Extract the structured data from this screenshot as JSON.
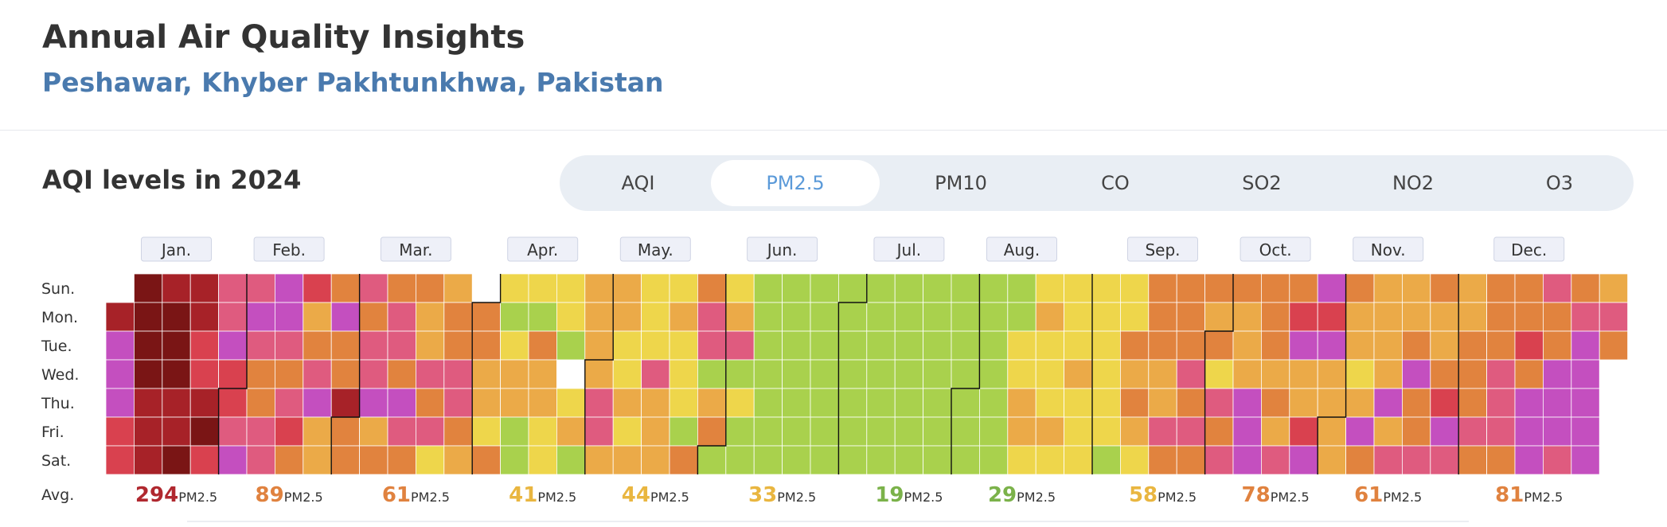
{
  "header": {
    "title": "Annual Air Quality Insights",
    "subtitle": "Peshawar, Khyber Pakhtunkhwa, Pakistan"
  },
  "section": {
    "title": "AQI levels in 2024"
  },
  "tabs": [
    {
      "label": "AQI",
      "active": false
    },
    {
      "label": "PM2.5",
      "active": true
    },
    {
      "label": "PM10",
      "active": false
    },
    {
      "label": "CO",
      "active": false
    },
    {
      "label": "SO2",
      "active": false
    },
    {
      "label": "NO2",
      "active": false
    },
    {
      "label": "O3",
      "active": false
    }
  ],
  "colors": {
    "dark_red": "#7a1515",
    "red": "#d9414f",
    "purple": "#9b3cb4",
    "pink": "#df5b7f",
    "orange": "#e1833e",
    "light_orange": "#ebaa48",
    "yellow": "#eed64b",
    "yellow_green": "#d0dc55",
    "green": "#a9d14d",
    "accent": "#5b9ad9",
    "subtitle": "#4a7aae"
  },
  "chart_data": {
    "type": "heatmap",
    "title": "AQI levels in 2024",
    "metric": "PM2.5",
    "year": 2024,
    "months": [
      "Jan.",
      "Feb.",
      "Mar.",
      "Apr.",
      "May.",
      "Jun.",
      "Jul.",
      "Aug.",
      "Sep.",
      "Oct.",
      "Nov.",
      "Dec."
    ],
    "days": [
      "Sun.",
      "Mon.",
      "Tue.",
      "Wed.",
      "Thu.",
      "Fri.",
      "Sat."
    ],
    "avg_label": "Avg.",
    "unit": "PM2.5",
    "averages": [
      294,
      89,
      61,
      41,
      44,
      33,
      19,
      29,
      58,
      78,
      61,
      81
    ],
    "avg_colors": [
      "#b0282f",
      "#e0823f",
      "#e0823f",
      "#e9b640",
      "#e9b640",
      "#e9b640",
      "#7bb24a",
      "#7bb24a",
      "#e9b640",
      "#e0823f",
      "#e0823f",
      "#e0823f"
    ],
    "weeks": [
      [
        null,
        1,
        3,
        3,
        3,
        2,
        2
      ],
      [
        0,
        0,
        0,
        0,
        1,
        1,
        1
      ],
      [
        1,
        0,
        0,
        0,
        1,
        1,
        0
      ],
      [
        1,
        1,
        2,
        2,
        1,
        0,
        2
      ],
      [
        4,
        4,
        3,
        2,
        2,
        4,
        3
      ],
      [
        4,
        3,
        4,
        5,
        5,
        4,
        4
      ],
      [
        3,
        3,
        4,
        5,
        4,
        2,
        5
      ],
      [
        2,
        6,
        5,
        4,
        3,
        6,
        6
      ],
      [
        5,
        3,
        5,
        5,
        1,
        5,
        5
      ],
      [
        4,
        5,
        4,
        4,
        3,
        6,
        5
      ],
      [
        5,
        4,
        4,
        5,
        3,
        4,
        5
      ],
      [
        5,
        6,
        6,
        4,
        5,
        4,
        7
      ],
      [
        6,
        5,
        5,
        4,
        4,
        5,
        6
      ],
      [
        null,
        5,
        5,
        6,
        6,
        7,
        5
      ],
      [
        7,
        8,
        7,
        6,
        6,
        8,
        8
      ],
      [
        7,
        8,
        5,
        6,
        6,
        7,
        7
      ],
      [
        7,
        7,
        8,
        null,
        7,
        6,
        8
      ],
      [
        6,
        6,
        6,
        6,
        4,
        4,
        6
      ],
      [
        6,
        6,
        7,
        7,
        6,
        7,
        6
      ],
      [
        7,
        7,
        7,
        4,
        6,
        6,
        6
      ],
      [
        7,
        6,
        7,
        7,
        7,
        8,
        5
      ],
      [
        5,
        4,
        4,
        8,
        6,
        5,
        8
      ],
      [
        7,
        6,
        4,
        8,
        7,
        8,
        8
      ],
      [
        8,
        8,
        8,
        8,
        8,
        8,
        8
      ],
      [
        8,
        8,
        8,
        8,
        8,
        8,
        8
      ],
      [
        8,
        8,
        8,
        8,
        8,
        8,
        8
      ],
      [
        8,
        8,
        8,
        8,
        8,
        8,
        8
      ],
      [
        8,
        8,
        8,
        8,
        8,
        8,
        8
      ],
      [
        8,
        8,
        8,
        8,
        8,
        8,
        8
      ],
      [
        8,
        8,
        8,
        8,
        8,
        8,
        8
      ],
      [
        8,
        8,
        8,
        8,
        8,
        8,
        8
      ],
      [
        8,
        8,
        8,
        8,
        8,
        8,
        8
      ],
      [
        8,
        8,
        7,
        7,
        6,
        6,
        7
      ],
      [
        7,
        6,
        7,
        7,
        7,
        6,
        7
      ],
      [
        7,
        7,
        7,
        6,
        7,
        7,
        7
      ],
      [
        7,
        7,
        7,
        7,
        7,
        7,
        8
      ],
      [
        7,
        7,
        5,
        6,
        5,
        6,
        7
      ],
      [
        5,
        5,
        5,
        6,
        6,
        4,
        5
      ],
      [
        5,
        5,
        5,
        4,
        5,
        4,
        5
      ],
      [
        5,
        6,
        5,
        7,
        4,
        5,
        4
      ],
      [
        5,
        6,
        6,
        6,
        3,
        3,
        3
      ],
      [
        5,
        5,
        5,
        6,
        5,
        6,
        4
      ],
      [
        5,
        2,
        3,
        6,
        6,
        2,
        3
      ],
      [
        3,
        2,
        3,
        6,
        6,
        6,
        6
      ],
      [
        5,
        6,
        6,
        7,
        6,
        3,
        5
      ],
      [
        6,
        6,
        6,
        6,
        3,
        6,
        4
      ],
      [
        6,
        6,
        5,
        3,
        5,
        5,
        4
      ],
      [
        5,
        6,
        6,
        5,
        2,
        3,
        4
      ],
      [
        6,
        6,
        5,
        5,
        5,
        4,
        5
      ],
      [
        5,
        5,
        5,
        4,
        4,
        4,
        5
      ],
      [
        5,
        5,
        2,
        5,
        3,
        3,
        3
      ],
      [
        4,
        5,
        5,
        3,
        3,
        3,
        4
      ],
      [
        5,
        4,
        3,
        3,
        3,
        3,
        3
      ],
      [
        6,
        4,
        5,
        null,
        null,
        null,
        null
      ]
    ],
    "scale_index_colors": [
      "#7a1515",
      "#a72228",
      "#d9414f",
      "#c44fbf",
      "#df5b7f",
      "#e1833e",
      "#ebaa48",
      "#eed64b",
      "#a9d14d"
    ]
  }
}
